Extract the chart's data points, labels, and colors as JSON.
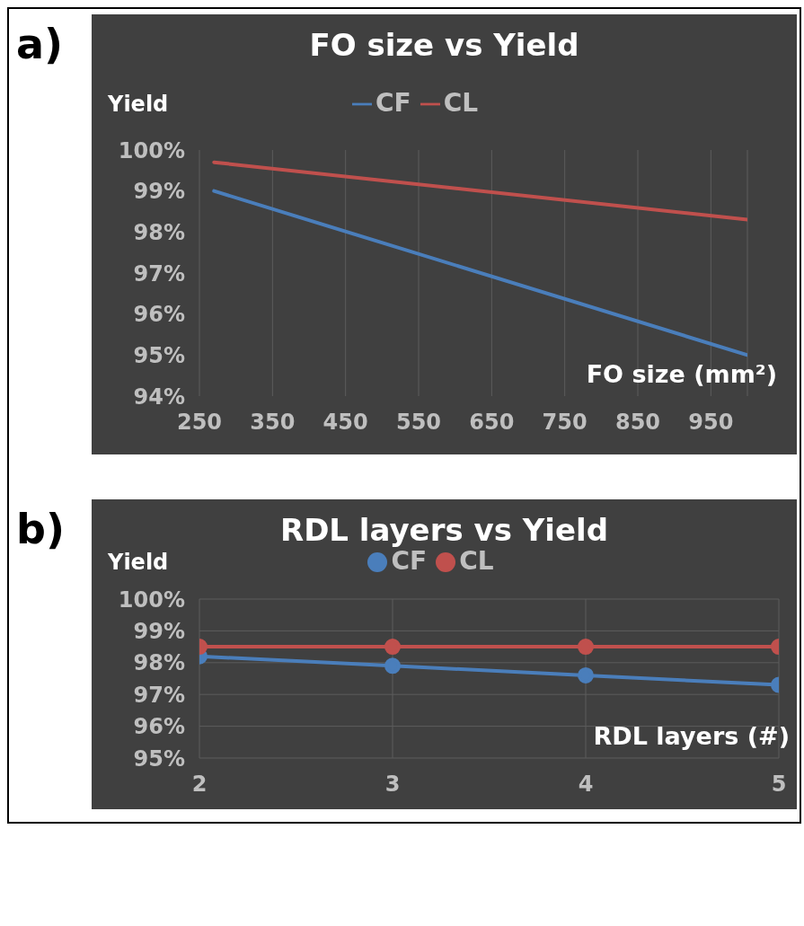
{
  "chart_data": [
    {
      "type": "line",
      "title": "FO size vs Yield",
      "xlabel": "FO size (mm²)",
      "ylabel": "Yield",
      "annotations": [
        "a)"
      ],
      "x": [
        270,
        1000
      ],
      "series": [
        {
          "name": "CF",
          "color": "#4a7ebb",
          "values": [
            99.0,
            95.0
          ]
        },
        {
          "name": "CL",
          "color": "#c0504d",
          "values": [
            99.7,
            98.3
          ]
        }
      ],
      "xlim": [
        250,
        1000
      ],
      "xticks": [
        250,
        350,
        450,
        550,
        650,
        750,
        850,
        950
      ],
      "ylim": [
        94,
        100
      ],
      "yticks": [
        {
          "value": 94,
          "label": "94%"
        },
        {
          "value": 95,
          "label": "95%"
        },
        {
          "value": 96,
          "label": "96%"
        },
        {
          "value": 97,
          "label": "97%"
        },
        {
          "value": 98,
          "label": "98%"
        },
        {
          "value": 99,
          "label": "99%"
        },
        {
          "value": 100,
          "label": "100%"
        }
      ],
      "grid": "x",
      "legend": "top",
      "marker": "none",
      "line_style": "solid"
    },
    {
      "type": "line",
      "title": "RDL layers vs Yield",
      "xlabel": "RDL layers (#)",
      "ylabel": "Yield",
      "annotations": [
        "b)"
      ],
      "x": [
        2,
        3,
        4,
        5
      ],
      "series": [
        {
          "name": "CF",
          "color": "#4a7ebb",
          "values": [
            98.2,
            97.9,
            97.6,
            97.3
          ]
        },
        {
          "name": "CL",
          "color": "#c0504d",
          "values": [
            98.5,
            98.5,
            98.5,
            98.5
          ]
        }
      ],
      "xlim": [
        2,
        5
      ],
      "xticks": [
        2,
        3,
        4,
        5
      ],
      "ylim": [
        95,
        100
      ],
      "yticks": [
        {
          "value": 95,
          "label": "95%"
        },
        {
          "value": 96,
          "label": "96%"
        },
        {
          "value": 97,
          "label": "97%"
        },
        {
          "value": 98,
          "label": "98%"
        },
        {
          "value": 99,
          "label": "99%"
        },
        {
          "value": 100,
          "label": "100%"
        }
      ],
      "grid": true,
      "legend": "top",
      "marker": "circle",
      "line_style": "solid"
    }
  ]
}
